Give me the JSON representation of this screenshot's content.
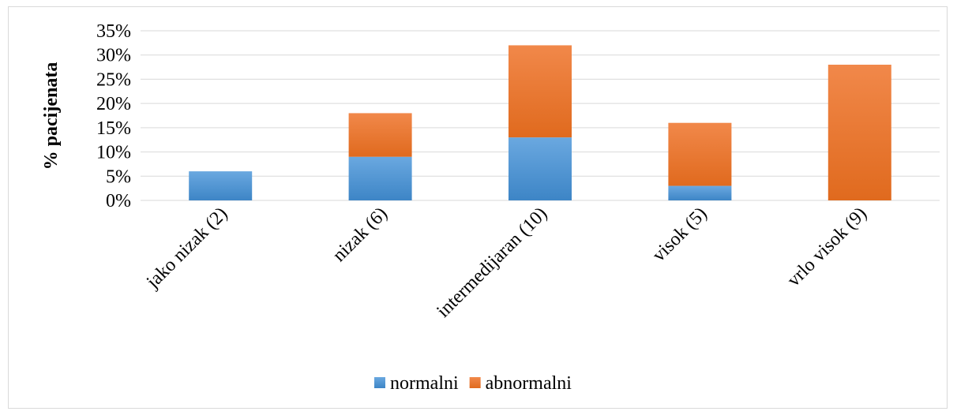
{
  "chart_data": {
    "type": "bar",
    "stacked": true,
    "categories": [
      "jako nizak (2)",
      "nizak (6)",
      "intermedijaran (10)",
      "visok (5)",
      "vrlo visok (9)"
    ],
    "series": [
      {
        "name": "normalni",
        "values": [
          6,
          9,
          13,
          3,
          0
        ],
        "color": "#5b9bd5"
      },
      {
        "name": "abnormalni",
        "values": [
          0,
          9,
          19,
          13,
          28
        ],
        "color": "#ed7d31"
      }
    ],
    "ylabel": "% pacijenata",
    "ylim": [
      0,
      35
    ],
    "yticks": [
      "0%",
      "5%",
      "10%",
      "15%",
      "20%",
      "25%",
      "30%",
      "35%"
    ],
    "grid": true,
    "legend_position": "bottom"
  }
}
